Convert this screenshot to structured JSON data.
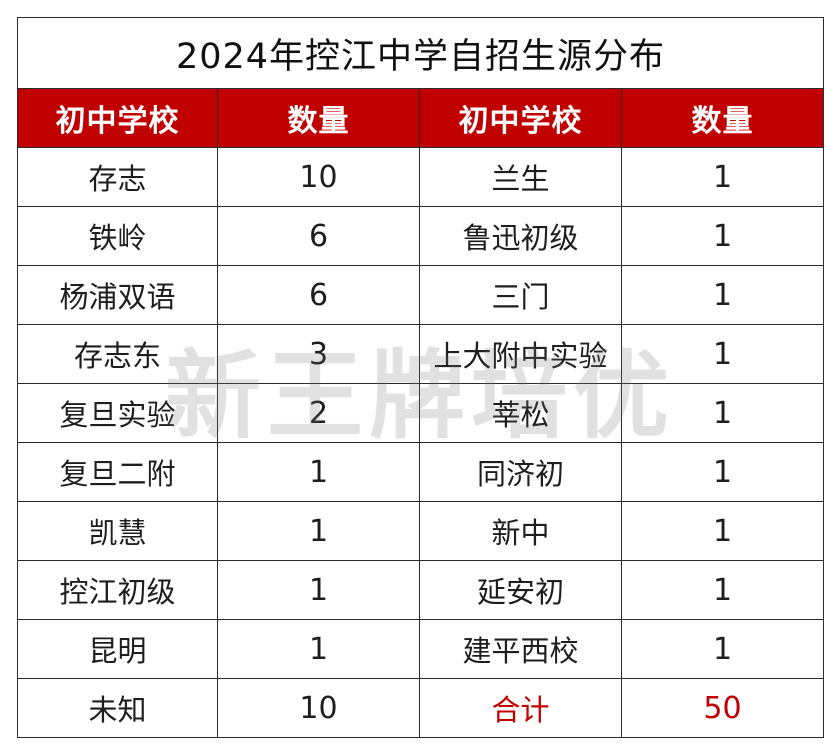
{
  "title": "2024年控江中学自招生源分布",
  "headers": [
    "初中学校",
    "数量",
    "初中学校",
    "数量"
  ],
  "rows": [
    {
      "school_left": "存志",
      "count_left": "10",
      "school_right": "兰生",
      "count_right": "1"
    },
    {
      "school_left": "铁岭",
      "count_left": "6",
      "school_right": "鲁迅初级",
      "count_right": "1"
    },
    {
      "school_left": "杨浦双语",
      "count_left": "6",
      "school_right": "三门",
      "count_right": "1"
    },
    {
      "school_left": "存志东",
      "count_left": "3",
      "school_right": "上大附中实验",
      "count_right": "1"
    },
    {
      "school_left": "复旦实验",
      "count_left": "2",
      "school_right": "莘松",
      "count_right": "1"
    },
    {
      "school_left": "复旦二附",
      "count_left": "1",
      "school_right": "同济初",
      "count_right": "1"
    },
    {
      "school_left": "凯慧",
      "count_left": "1",
      "school_right": "新中",
      "count_right": "1"
    },
    {
      "school_left": "控江初级",
      "count_left": "1",
      "school_right": "延安初",
      "count_right": "1"
    },
    {
      "school_left": "昆明",
      "count_left": "1",
      "school_right": "建平西校",
      "count_right": "1"
    },
    {
      "school_left": "未知",
      "count_left": "10",
      "school_right": "合计",
      "count_right": "50"
    }
  ],
  "watermark": "新王牌培优",
  "colors": {
    "header_bg": "#c00000",
    "header_text": "#ffffff",
    "total_text": "#c00000",
    "border": "#2b2b2b"
  }
}
